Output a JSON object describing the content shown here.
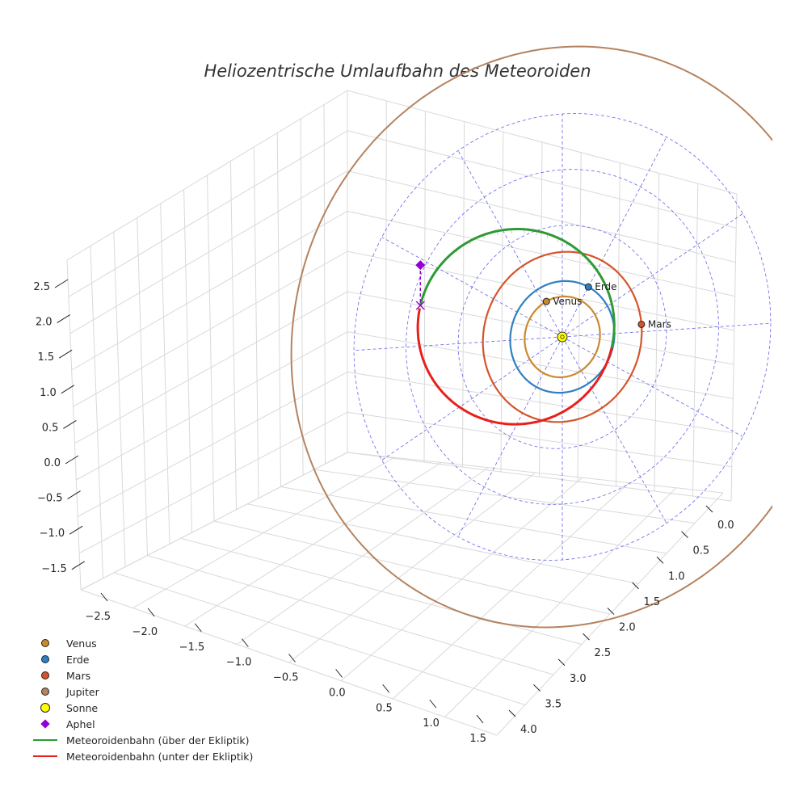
{
  "chart_data": {
    "type": "3d-orbit",
    "title": "Heliozentrische Umlaufbahn des Meteoroiden",
    "axes": {
      "x_ticks": [
        "−2.5",
        "−2.0",
        "−1.5",
        "−1.0",
        "−0.5",
        "0.0",
        "0.5",
        "1.0",
        "1.5"
      ],
      "y_ticks": [
        "0.0",
        "0.5",
        "1.0",
        "1.5",
        "2.0",
        "2.5",
        "3.0",
        "3.5",
        "4.0"
      ],
      "z_ticks": [
        "2.5",
        "2.0",
        "1.5",
        "1.0",
        "0.5",
        "0.0",
        "−0.5",
        "−1.0",
        "−1.5"
      ],
      "xlim": [
        -2.8,
        1.6
      ],
      "ylim": [
        -0.2,
        4.2
      ],
      "zlim": [
        -1.8,
        2.7
      ]
    },
    "sun": {
      "label": "Sonne",
      "color": "#ffff00"
    },
    "planets": [
      {
        "name": "Venus",
        "a": 0.723,
        "color": "#c98a2e",
        "position_angle_deg": 245
      },
      {
        "name": "Erde",
        "a": 1.0,
        "color": "#2f7fc1",
        "position_angle_deg": 300
      },
      {
        "name": "Mars",
        "a": 1.524,
        "color": "#d4552a",
        "position_angle_deg": 355
      },
      {
        "name": "Jupiter",
        "a": 5.2,
        "color": "#b5835f"
      }
    ],
    "meteoroid_orbit": {
      "perihelion_au": 0.98,
      "aphelion_au": 2.82,
      "inclination_deg": 4,
      "aphelion_direction_deg": 195
    },
    "ecliptic_grid_radii": [
      1,
      2,
      3,
      4
    ],
    "ecliptic_grid_spokes": 12
  },
  "legend": {
    "items": [
      {
        "label": "Venus",
        "kind": "dot",
        "color": "#c98a2e"
      },
      {
        "label": "Erde",
        "kind": "dot",
        "color": "#2f7fc1"
      },
      {
        "label": "Mars",
        "kind": "dot",
        "color": "#d4552a"
      },
      {
        "label": "Jupiter",
        "kind": "dot",
        "color": "#b5835f"
      },
      {
        "label": "Sonne",
        "kind": "sun",
        "color": "#ffff00"
      },
      {
        "label": "Aphel",
        "kind": "diamond",
        "color": "#9400d3"
      },
      {
        "label": "Meteoroidenbahn (über der Ekliptik)",
        "kind": "line",
        "color": "#2e9a35"
      },
      {
        "label": "Meteoroidenbahn (unter der Ekliptik)",
        "kind": "line",
        "color": "#e8201c"
      }
    ]
  }
}
